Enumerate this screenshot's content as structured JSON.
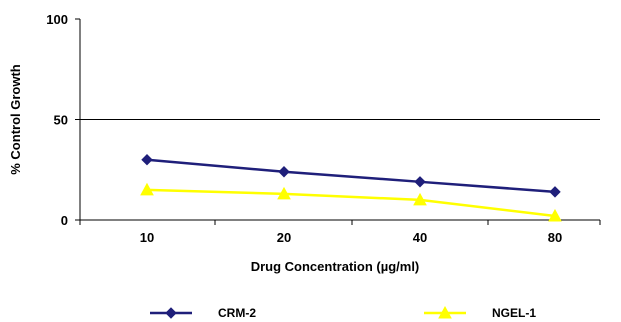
{
  "chart_data": {
    "type": "line",
    "categories": [
      "10",
      "20",
      "40",
      "80"
    ],
    "series": [
      {
        "name": "CRM-2",
        "values": [
          30,
          24,
          19,
          14
        ],
        "color": "#1f1f7a",
        "marker": "diamond"
      },
      {
        "name": "NGEL-1",
        "values": [
          15,
          13,
          10,
          2
        ],
        "color": "#ffff00",
        "marker": "triangle"
      }
    ],
    "title": "",
    "xlabel": "Drug Concentration (µg/ml)",
    "ylabel": "% Control Growth",
    "ylim": [
      0,
      100
    ],
    "yticks": [
      "0",
      "50",
      "100"
    ],
    "gridlines": [
      50
    ],
    "legend_position": "bottom"
  }
}
